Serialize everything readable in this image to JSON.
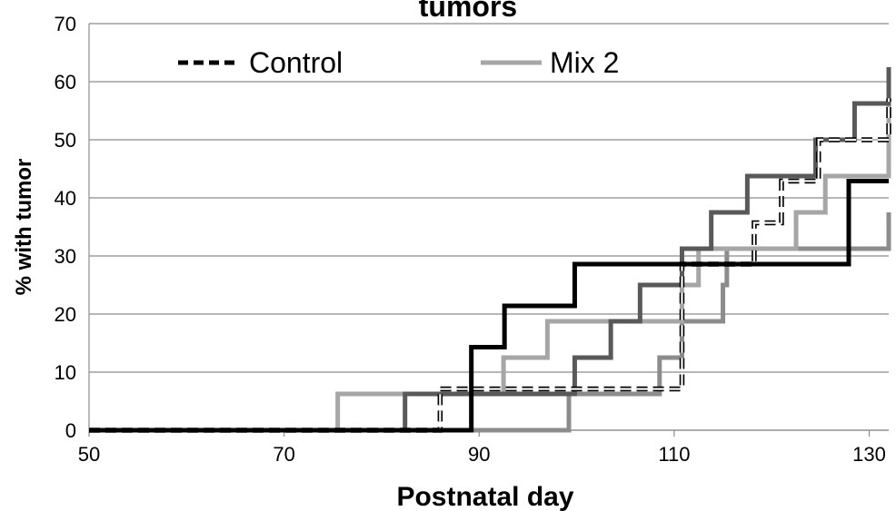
{
  "chart_data": {
    "type": "line",
    "title": "tumors",
    "xlabel": "Postnatal day",
    "ylabel": "% with tumor",
    "xlim": [
      50,
      132
    ],
    "ylim": [
      0,
      70
    ],
    "xticks": [
      "50",
      "70",
      "90",
      "110",
      "130"
    ],
    "yticks": [
      "0",
      "10",
      "20",
      "30",
      "40",
      "50",
      "60",
      "70"
    ],
    "grid": "horizontal",
    "legend_position": "top",
    "series": [
      {
        "name": "Control",
        "style": "dashed-outline",
        "color": "#000000",
        "x": [
          50,
          85.5,
          86,
          110.3,
          110.8,
          117.8,
          118.2,
          120.4,
          121,
          124.3,
          124.8,
          131.4,
          132
        ],
        "y": [
          0,
          0,
          7.1,
          7.1,
          28.6,
          28.6,
          35.7,
          35.7,
          42.9,
          42.9,
          50,
          50,
          57.1
        ]
      },
      {
        "name": "Mix 2",
        "style": "solid",
        "color": "#a6a6a6",
        "x": [
          50,
          75.5,
          92.5,
          97,
          110.8,
          112.5,
          114,
          120.5,
          122.5,
          124.5,
          125.5,
          131.5,
          132
        ],
        "y": [
          0,
          6.25,
          12.5,
          18.75,
          25,
          31.25,
          31.25,
          31.25,
          37.5,
          37.5,
          43.75,
          43.75,
          56.25
        ]
      },
      {
        "style": "solid",
        "color": "#000000",
        "x": [
          50,
          89.2,
          90.5,
          92.6,
          99.3,
          99.8,
          127.3,
          127.9,
          132
        ],
        "y": [
          0,
          14.3,
          14.3,
          21.4,
          21.4,
          28.6,
          28.6,
          42.9,
          42.9
        ]
      },
      {
        "style": "solid",
        "color": "#595959",
        "x": [
          50,
          82.4,
          99.5,
          99.8,
          103.5,
          106.5,
          109.6,
          110.8,
          113.8,
          117.5,
          124.5,
          128.5,
          131.3,
          132
        ],
        "y": [
          0,
          6.25,
          6.25,
          12.5,
          18.75,
          25,
          25,
          31.25,
          37.5,
          43.75,
          50,
          56.25,
          56.25,
          62.5
        ]
      },
      {
        "style": "solid",
        "color": "#8c8c8c",
        "x": [
          50,
          99.2,
          108.5,
          110.8,
          112.7,
          115,
          115.4,
          131.5,
          132
        ],
        "y": [
          0,
          6.25,
          12.5,
          18.75,
          18.75,
          25,
          31.25,
          31.25,
          37.5
        ]
      }
    ]
  }
}
